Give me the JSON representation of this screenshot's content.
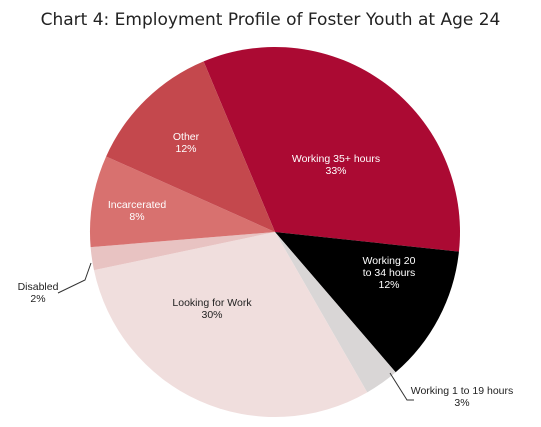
{
  "chart_data": {
    "type": "pie",
    "title": "Chart 4: Employment Profile of Foster Youth at Age 24",
    "slices": [
      {
        "label": "Working 35+ hours",
        "pct_label": "33%",
        "value": 33,
        "color": "#ab0a33",
        "label_color": "#ffffff"
      },
      {
        "label": "Working 20 to 34 hours",
        "label_lines": [
          "Working 20",
          "to 34 hours"
        ],
        "pct_label": "12%",
        "value": 12,
        "color": "#000000",
        "label_color": "#ffffff"
      },
      {
        "label": "Working 1 to 19 hours",
        "pct_label": "3%",
        "value": 3,
        "color": "#d9d6d6",
        "label_color": "#222222"
      },
      {
        "label": "Looking for Work",
        "pct_label": "30%",
        "value": 30,
        "color": "#f0dedd",
        "label_color": "#222222"
      },
      {
        "label": "Disabled",
        "pct_label": "2%",
        "value": 2,
        "color": "#e8c3c2",
        "label_color": "#222222"
      },
      {
        "label": "Incarcerated",
        "pct_label": "8%",
        "value": 8,
        "color": "#d8716f",
        "label_color": "#ffffff"
      },
      {
        "label": "Other",
        "pct_label": "12%",
        "value": 12,
        "color": "#c4484d",
        "label_color": "#ffffff"
      }
    ]
  }
}
